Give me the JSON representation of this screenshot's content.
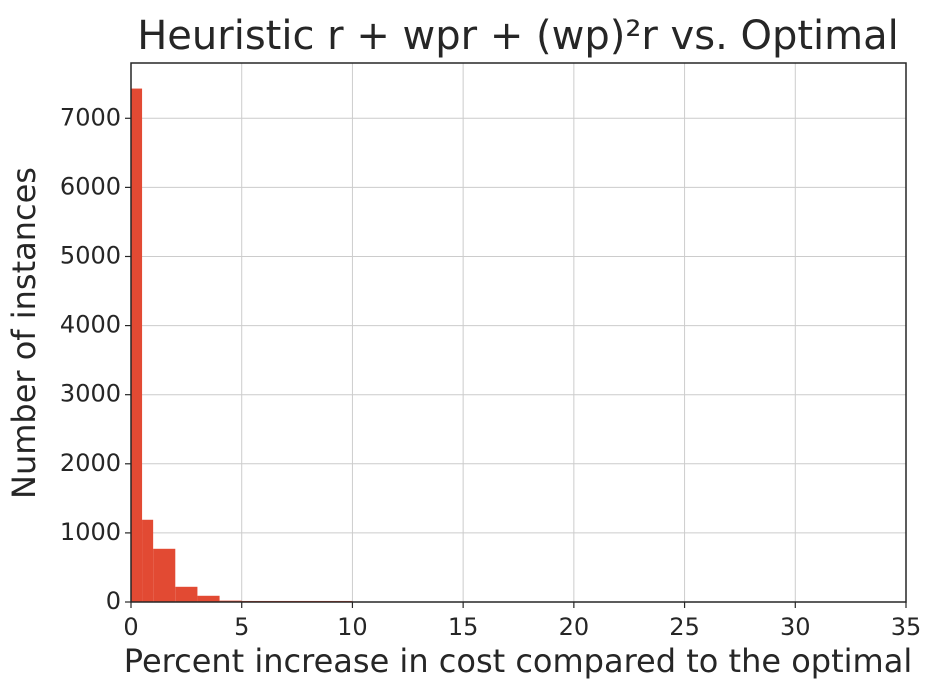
{
  "chart_data": {
    "type": "histogram",
    "title": "Heuristic r + wpr + (wp)²r vs. Optimal",
    "x_label": "Percent increase in cost compared to the optimal",
    "y_label": "Number of instances",
    "bins": [
      0,
      0.5,
      1,
      2,
      3,
      4,
      5,
      10
    ],
    "counts": [
      7430,
      1190,
      770,
      220,
      90,
      20,
      15
    ],
    "color": "#e24a33",
    "xlim": [
      0,
      35
    ],
    "xticks": [
      0,
      5,
      10,
      15,
      20,
      25,
      30,
      35
    ],
    "ylim": [
      0,
      7800
    ],
    "yticks": [
      0,
      1000,
      2000,
      3000,
      4000,
      5000,
      6000,
      7000
    ],
    "grid": true
  }
}
